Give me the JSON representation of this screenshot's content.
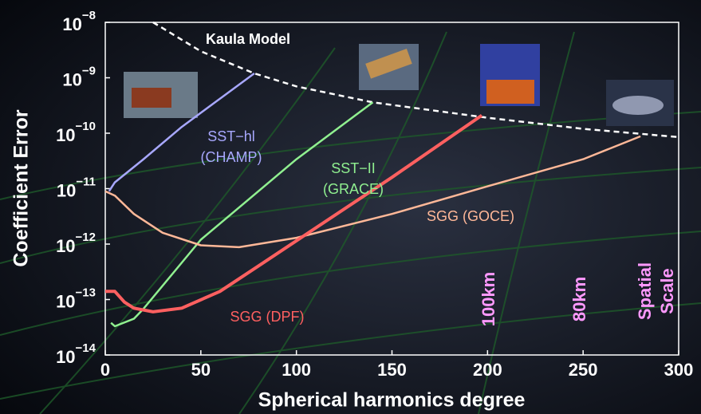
{
  "chart_data": {
    "type": "line",
    "y_scale": "log",
    "x_label": "Spherical harmonics degree",
    "y_label": "Coefficient Error",
    "xlim": [
      0,
      300
    ],
    "xticks": [
      0,
      50,
      100,
      150,
      200,
      250,
      300
    ],
    "ylim": [
      1e-14,
      1e-08
    ],
    "yticks": [
      {
        "value": 1e-14,
        "label": [
          "10",
          "−14"
        ]
      },
      {
        "value": 1e-13,
        "label": [
          "10",
          "−13"
        ]
      },
      {
        "value": 1e-12,
        "label": [
          "10",
          "−12"
        ]
      },
      {
        "value": 1e-11,
        "label": [
          "10",
          "−11"
        ]
      },
      {
        "value": 1e-10,
        "label": [
          "10",
          "−10"
        ]
      },
      {
        "value": 1e-09,
        "label": [
          "10",
          "−9"
        ]
      },
      {
        "value": 1e-08,
        "label": [
          "10",
          "−8"
        ]
      }
    ],
    "series": [
      {
        "name": "Kaula Model",
        "color": "#ffffff",
        "dashed": true,
        "x": [
          25,
          50,
          78,
          100,
          140,
          200,
          250,
          300
        ],
        "values": [
          1e-08,
          3e-09,
          1.2e-09,
          7e-10,
          3.6e-10,
          1.9e-10,
          1.2e-10,
          8.5e-11
        ]
      },
      {
        "name": "SST−hl (CHAMP)",
        "color": "#a8a8ff",
        "dashed": false,
        "x": [
          2,
          5,
          20,
          40,
          60,
          78
        ],
        "values": [
          9e-12,
          1.3e-11,
          3.4e-11,
          1.3e-10,
          4.2e-10,
          1.2e-09
        ]
      },
      {
        "name": "SST−II (GRACE)",
        "color": "#90f090",
        "dashed": false,
        "x": [
          3,
          5,
          15,
          20,
          50,
          100,
          140
        ],
        "values": [
          3.8e-14,
          3.3e-14,
          4.5e-14,
          6.8e-14,
          1.2e-12,
          3.4e-11,
          3.6e-10
        ]
      },
      {
        "name": "SGG (GOCE)",
        "color": "#ffb898",
        "dashed": false,
        "x": [
          0,
          5,
          15,
          30,
          50,
          70,
          100,
          150,
          200,
          250,
          280
        ],
        "values": [
          9e-12,
          7.5e-12,
          3.5e-12,
          1.6e-12,
          9.5e-13,
          8.8e-13,
          1.3e-12,
          3.5e-12,
          1.1e-11,
          3.4e-11,
          8.8e-11
        ]
      },
      {
        "name": "SGG (DPF)",
        "color": "#ff6060",
        "dashed": false,
        "x": [
          0,
          5,
          10,
          15,
          25,
          40,
          60,
          80,
          100,
          150,
          197
        ],
        "values": [
          1.4e-13,
          1.4e-13,
          9e-14,
          7e-14,
          6e-14,
          7e-14,
          1.4e-13,
          4e-13,
          1.15e-12,
          1.6e-11,
          2.1e-10
        ]
      }
    ],
    "annotations": [
      {
        "lines": [
          "Kaula Model"
        ],
        "color": "#ffffff"
      },
      {
        "lines": [
          "SST−hl",
          "(CHAMP)"
        ],
        "color": "#a8a8ff"
      },
      {
        "lines": [
          "SST−II",
          "(GRACE)"
        ],
        "color": "#90f090"
      },
      {
        "lines": [
          "SGG  (GOCE)"
        ],
        "color": "#ffb898"
      },
      {
        "lines": [
          "SGG  (DPF)"
        ],
        "color": "#ff6060"
      },
      {
        "lines": [
          "100km"
        ],
        "color": "#ff99ff"
      },
      {
        "lines": [
          "80km"
        ],
        "color": "#ff99ff"
      },
      {
        "lines": [
          "Spatial",
          "Scale"
        ],
        "color": "#ff99ff"
      }
    ]
  }
}
